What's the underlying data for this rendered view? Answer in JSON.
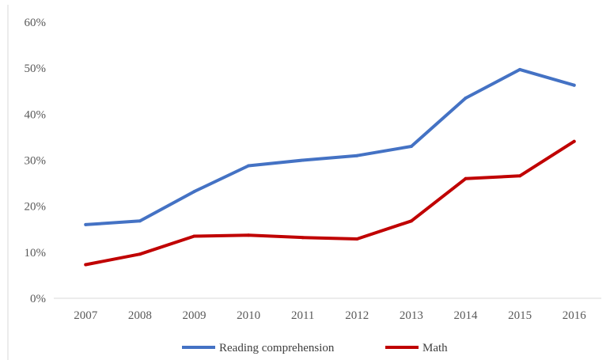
{
  "chart_data": {
    "type": "line",
    "title": "",
    "xlabel": "",
    "ylabel": "",
    "categories": [
      "2007",
      "2008",
      "2009",
      "2010",
      "2011",
      "2012",
      "2013",
      "2014",
      "2015",
      "2016"
    ],
    "y_ticks": [
      "0%",
      "10%",
      "20%",
      "30%",
      "40%",
      "50%",
      "60%"
    ],
    "ylim": [
      0,
      60
    ],
    "grid": false,
    "legend_position": "bottom",
    "series": [
      {
        "name": "Reading comprehension",
        "color": "#4472c4",
        "values": [
          16,
          16.8,
          23.2,
          28.8,
          30,
          31,
          33,
          43.5,
          49.7,
          46.3
        ]
      },
      {
        "name": "Math",
        "color": "#c00000",
        "values": [
          7.3,
          9.6,
          13.5,
          13.7,
          13.2,
          12.9,
          16.8,
          26,
          26.6,
          34.1
        ]
      }
    ]
  }
}
